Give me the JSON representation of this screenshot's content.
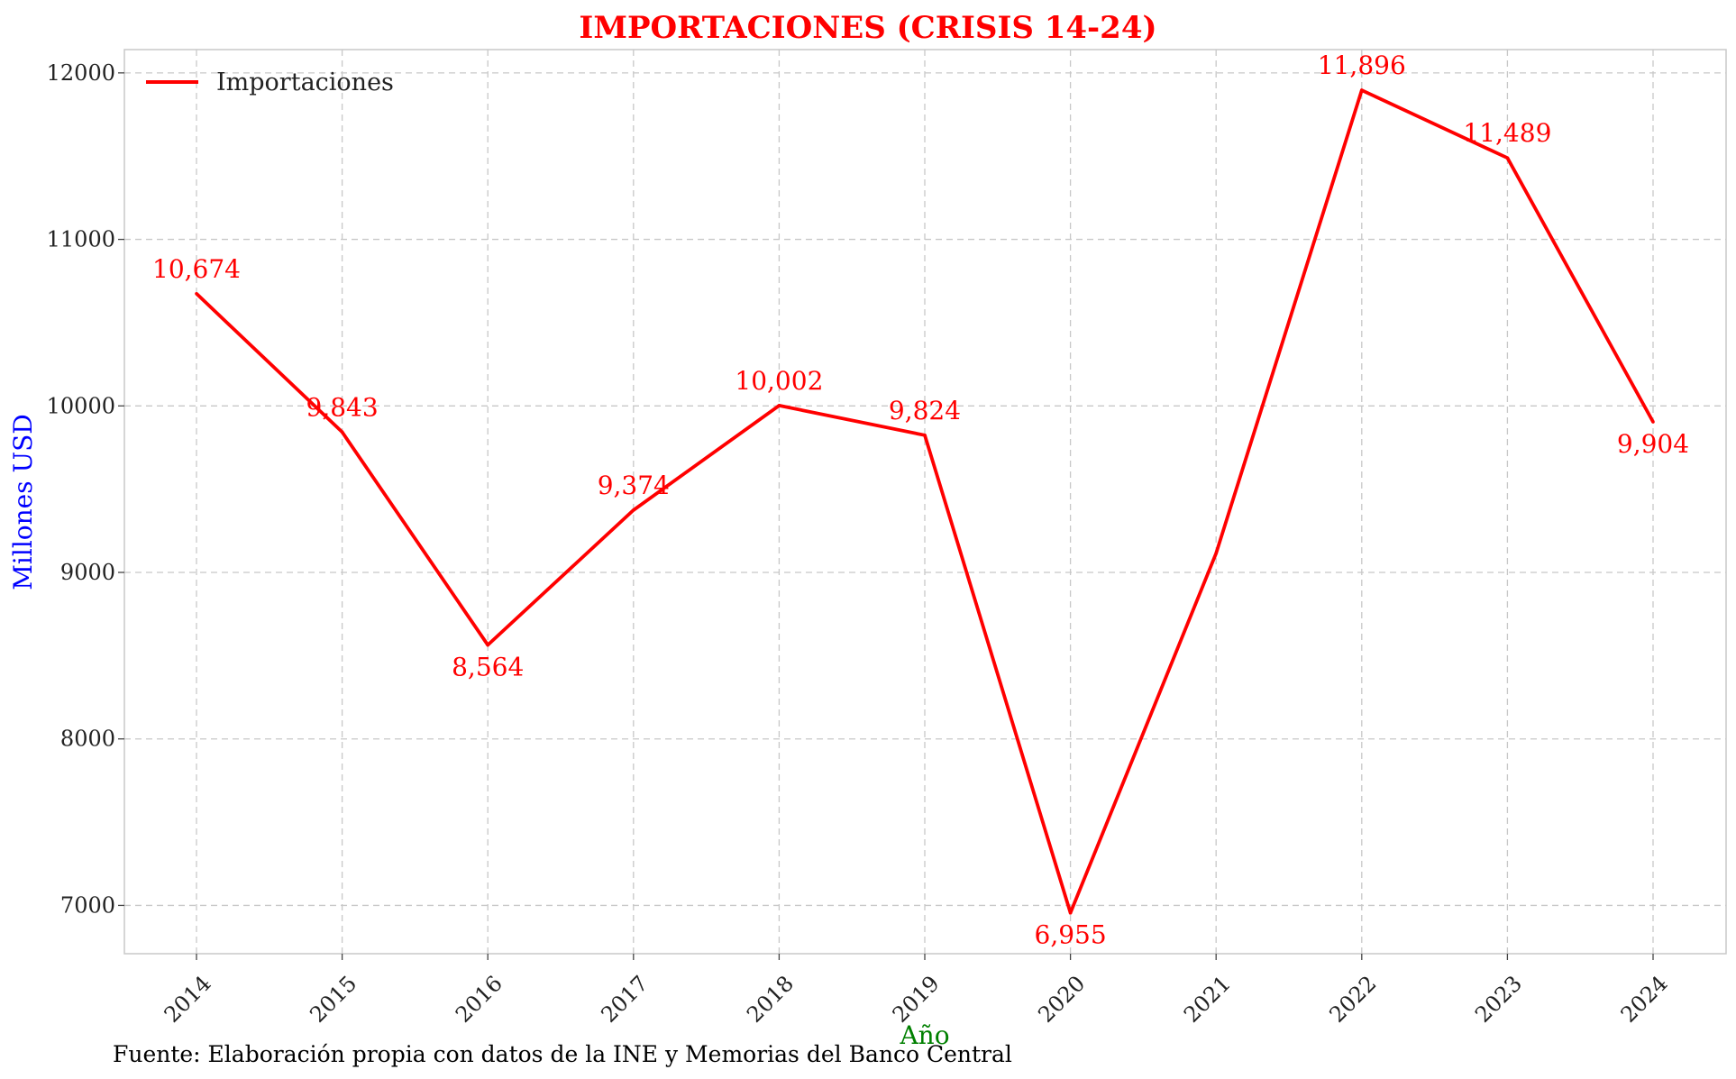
{
  "chart_data": {
    "type": "line",
    "title": "IMPORTACIONES (CRISIS 14-24)",
    "xlabel": "Año",
    "ylabel": "Millones USD",
    "x": [
      "2014",
      "2015",
      "2016",
      "2017",
      "2018",
      "2019",
      "2020",
      "2021",
      "2022",
      "2023",
      "2024"
    ],
    "series": [
      {
        "name": "Importaciones",
        "color": "#ff0000",
        "values": [
          10674,
          9843,
          8564,
          9374,
          10002,
          9824,
          6955,
          9115,
          11896,
          11489,
          9904
        ]
      }
    ],
    "data_labels": [
      "10,674",
      "9,843",
      "8,564",
      "9,374",
      "10,002",
      "9,824",
      "6,955",
      "",
      "11,896",
      "11,489",
      "9,904"
    ],
    "yticks": [
      7000,
      8000,
      9000,
      10000,
      11000,
      12000
    ],
    "ylim": [
      6710,
      12140
    ],
    "grid": true,
    "legend_position": "top-left"
  },
  "source": "Fuente: Elaboración propia con datos de la INE y Memorias del Banco Central"
}
